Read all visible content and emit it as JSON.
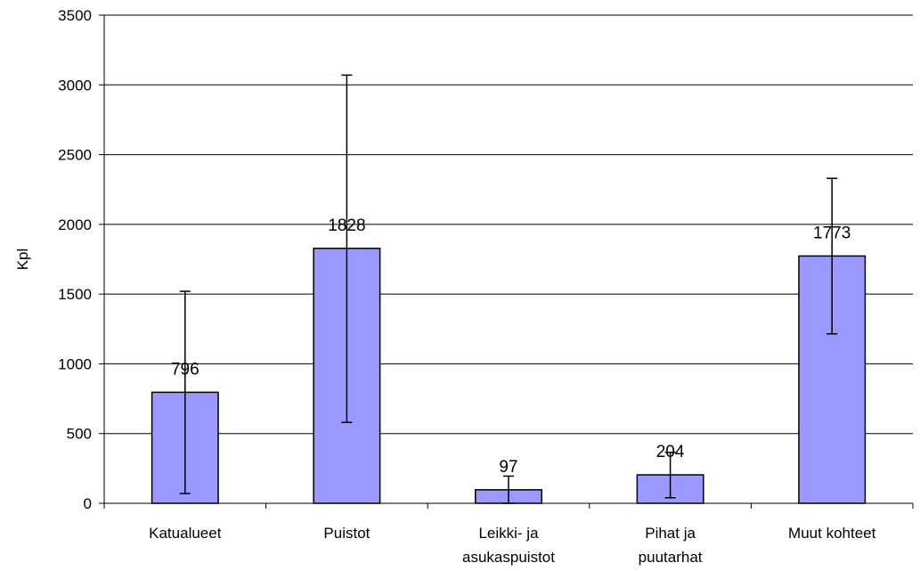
{
  "chart_data": {
    "type": "bar",
    "title": "",
    "xlabel": "",
    "ylabel": "Kpl",
    "ylim": [
      0,
      3500
    ],
    "yticks": [
      0,
      500,
      1000,
      1500,
      2000,
      2500,
      3000,
      3500
    ],
    "ytick_labels": [
      "0",
      "500",
      "1000",
      "1500",
      "2000",
      "2500",
      "3000",
      "3500"
    ],
    "grid": true,
    "legend": "none",
    "categories": [
      [
        "Katualueet"
      ],
      [
        "Puistot"
      ],
      [
        "Leikki- ja",
        "asukaspuistot"
      ],
      [
        "Pihat ja",
        "puutarhat"
      ],
      [
        "Muut kohteet"
      ]
    ],
    "values": [
      796,
      1828,
      97,
      204,
      1773
    ],
    "data_labels": [
      "796",
      "1828",
      "97",
      "204",
      "1773"
    ],
    "error_bars": [
      {
        "low": 70,
        "high": 1520
      },
      {
        "low": 580,
        "high": 3070
      },
      {
        "low": 0,
        "high": 195
      },
      {
        "low": 40,
        "high": 365
      },
      {
        "low": 1215,
        "high": 2330
      }
    ],
    "colors": {
      "bar_fill": "#9999FF",
      "bar_stroke": "#000000",
      "grid": "#000000",
      "axis": "#000000",
      "error_bar": "#000000",
      "text": "#000000"
    }
  }
}
